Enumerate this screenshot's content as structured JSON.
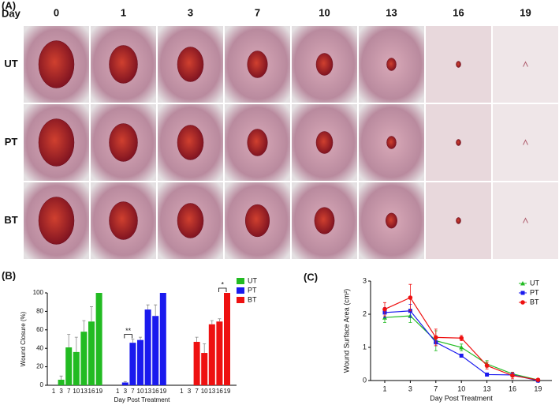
{
  "panel_a": {
    "label": "(A)",
    "row_header": "Day",
    "days": [
      "0",
      "1",
      "3",
      "7",
      "10",
      "13",
      "16",
      "19"
    ],
    "groups": [
      "UT",
      "PT",
      "BT"
    ]
  },
  "chart_data": [
    {
      "type": "bar",
      "panel_label": "(B)",
      "y_label": "Wound Closure (%)",
      "x_label": "Day Post Treatment",
      "categories": [
        "1",
        "3",
        "7",
        "10",
        "13",
        "16",
        "19"
      ],
      "ylim": [
        0,
        100
      ],
      "yticks": [
        0,
        20,
        40,
        60,
        80,
        100
      ],
      "legend": "upper right",
      "series": [
        {
          "name": "UT",
          "color": "#22bb22",
          "values": [
            0,
            6,
            41,
            36,
            58,
            69,
            100
          ],
          "errors": [
            0,
            4,
            14,
            16,
            12,
            16,
            0
          ]
        },
        {
          "name": "PT",
          "color": "#1a1aee",
          "values": [
            0,
            3,
            46,
            49,
            82,
            75,
            100
          ],
          "errors": [
            0,
            1,
            4,
            3,
            5,
            12,
            0
          ]
        },
        {
          "name": "BT",
          "color": "#ee1111",
          "values": [
            0,
            0,
            47,
            35,
            66,
            69,
            100
          ],
          "errors": [
            0,
            0,
            5,
            10,
            4,
            3,
            0
          ]
        }
      ],
      "annotations": [
        {
          "text": "**",
          "series": 1,
          "from": 1,
          "to": 2
        },
        {
          "text": "*",
          "series": 2,
          "from": 5,
          "to": 6
        }
      ]
    },
    {
      "type": "line",
      "panel_label": "(C)",
      "y_label": "Wound Surface Area (cm²)",
      "x_label": "Day Post Treatment",
      "categories": [
        "1",
        "3",
        "7",
        "10",
        "13",
        "16",
        "19"
      ],
      "ylim": [
        0,
        3
      ],
      "yticks": [
        0,
        1,
        2,
        3
      ],
      "legend": "upper right",
      "series": [
        {
          "name": "UT",
          "color": "#22bb22",
          "marker": "triangle",
          "values": [
            1.9,
            1.95,
            1.2,
            1.0,
            0.5,
            0.2,
            0.02
          ],
          "errors": [
            0.15,
            0.2,
            0.3,
            0.1,
            0.1,
            0.05,
            0.02
          ]
        },
        {
          "name": "PT",
          "color": "#1a1aee",
          "marker": "square",
          "values": [
            2.05,
            2.1,
            1.15,
            0.75,
            0.18,
            0.17,
            0.0
          ],
          "errors": [
            0.15,
            0.2,
            0.1,
            0.05,
            0.05,
            0.05,
            0.02
          ]
        },
        {
          "name": "BT",
          "color": "#ee1111",
          "marker": "circle",
          "values": [
            2.15,
            2.5,
            1.3,
            1.28,
            0.45,
            0.15,
            0.02
          ],
          "errors": [
            0.2,
            0.4,
            0.25,
            0.08,
            0.1,
            0.1,
            0.02
          ]
        }
      ]
    }
  ]
}
